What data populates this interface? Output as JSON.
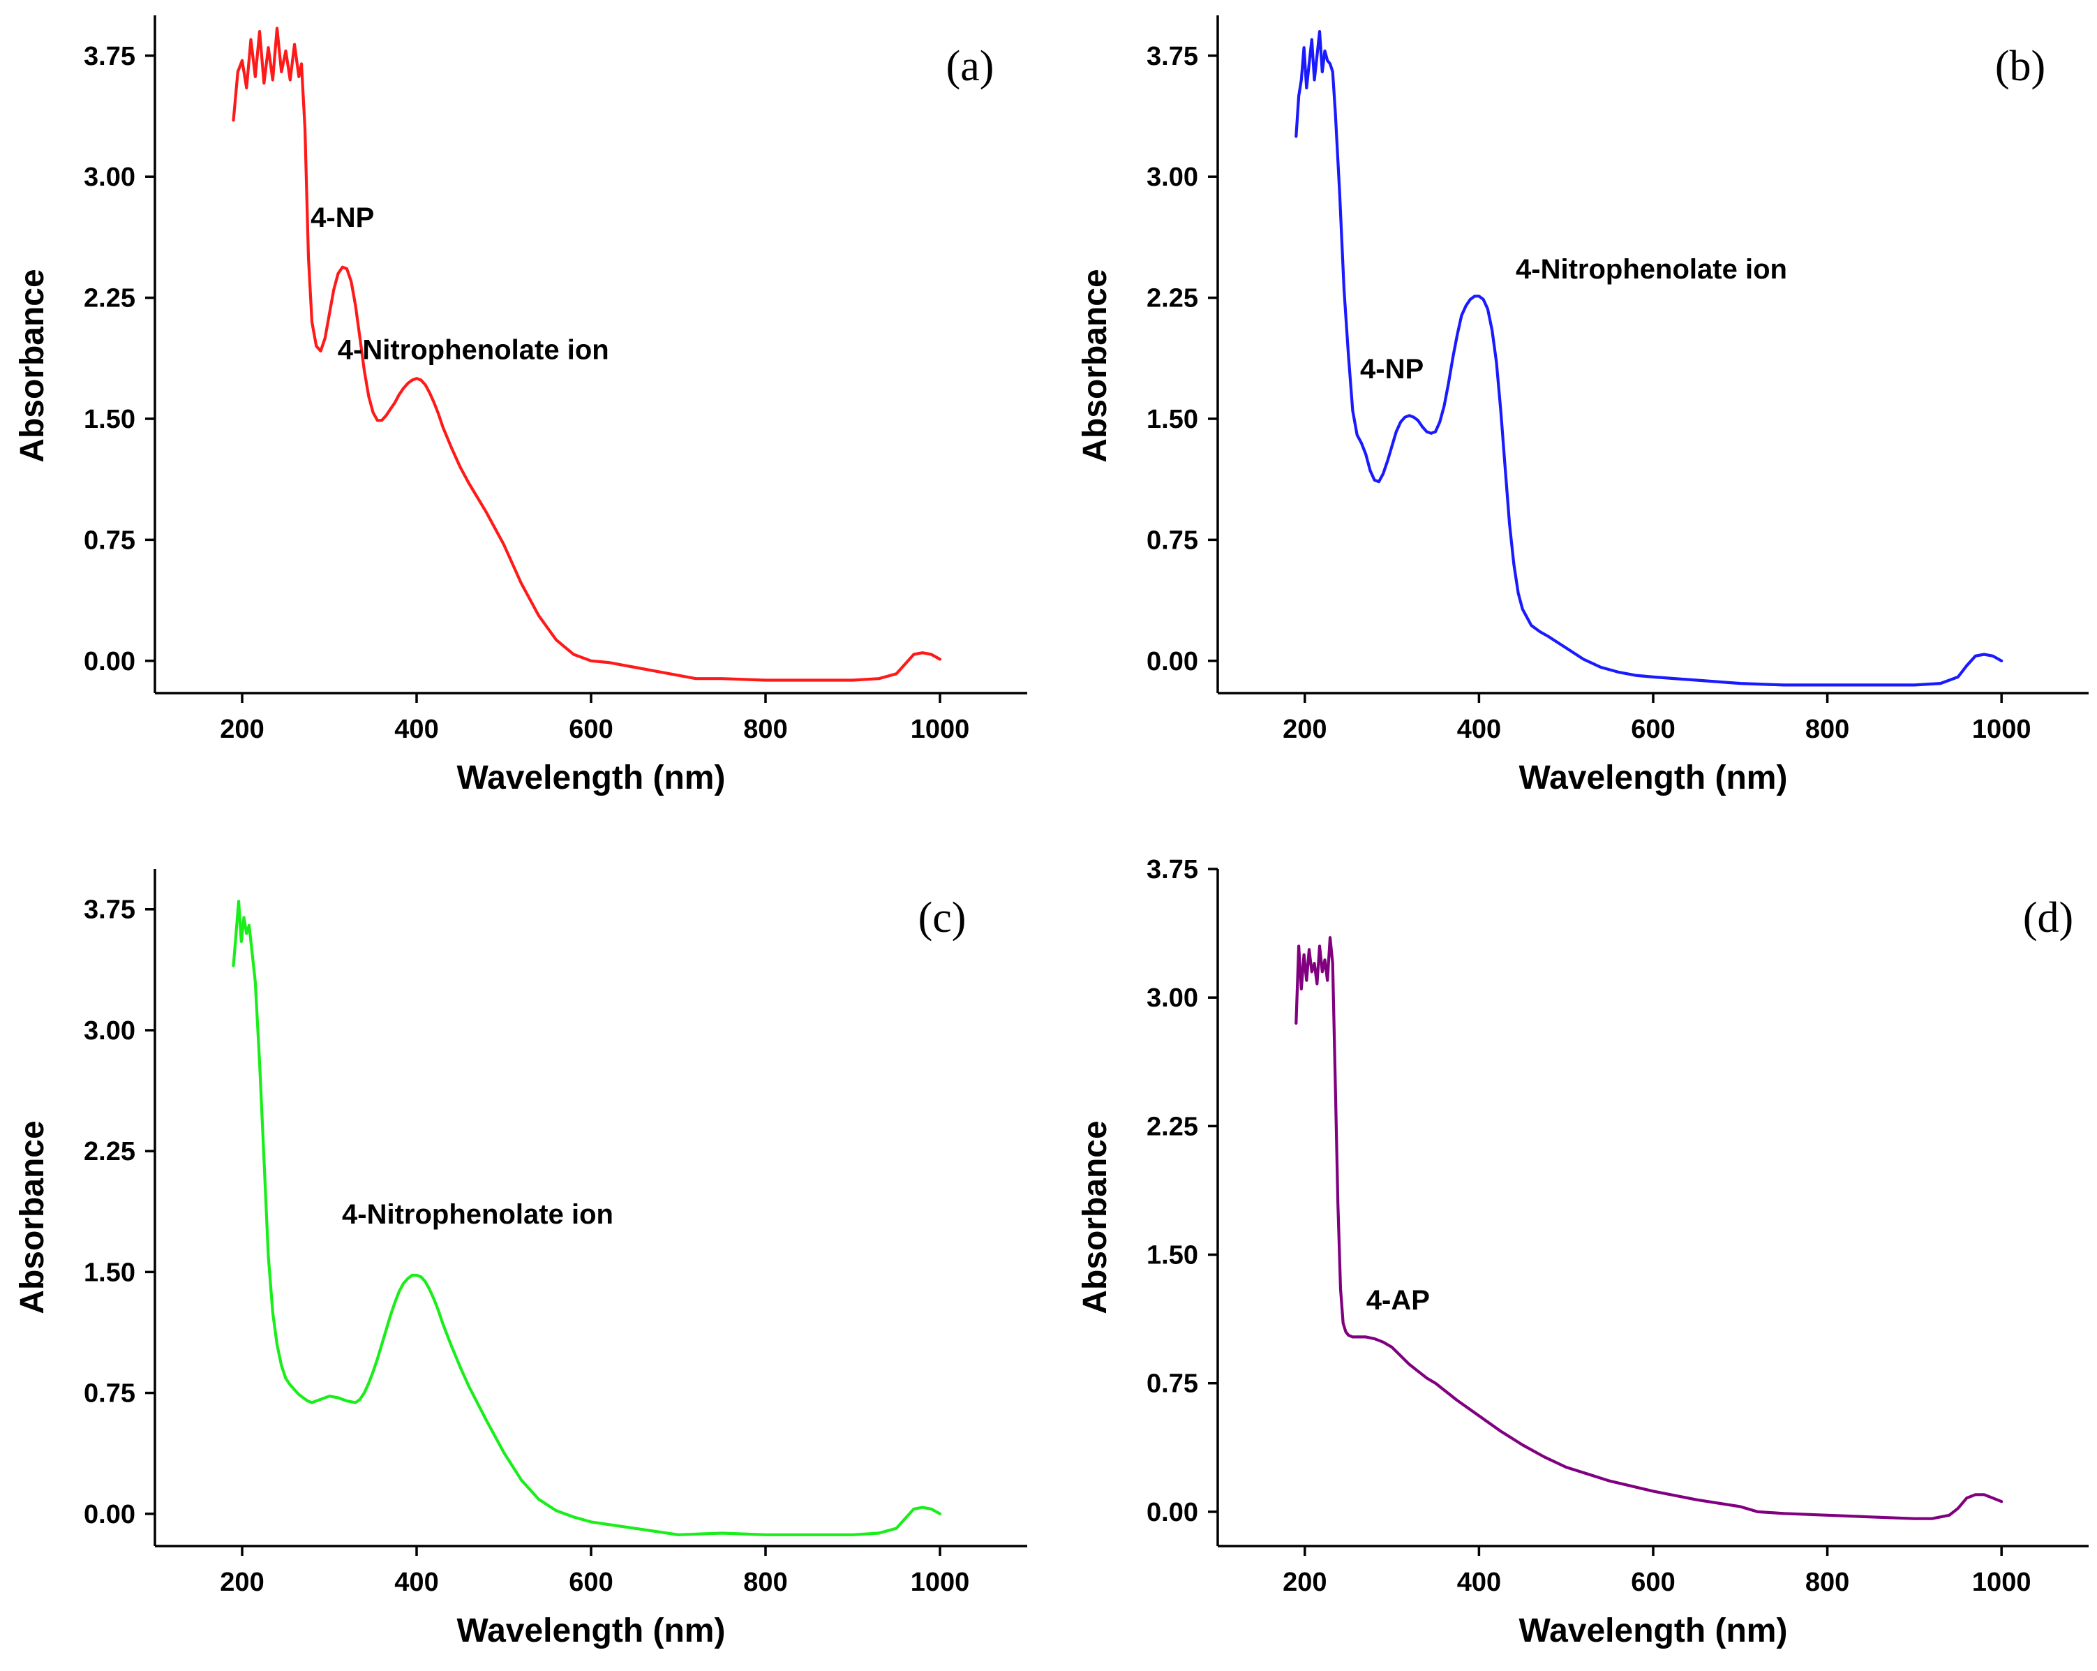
{
  "chart_data": [
    {
      "type": "line",
      "panel_label": "(a)",
      "xlabel": "Wavelength (nm)",
      "ylabel": "Absorbance",
      "xlim": [
        100,
        1100
      ],
      "ylim": [
        -0.2,
        4.0
      ],
      "xticks": [
        200,
        400,
        600,
        800,
        1000
      ],
      "xtick_labels": [
        "200",
        "400",
        "600",
        "800",
        "1000"
      ],
      "yticks": [
        0,
        0.75,
        1.5,
        2.25,
        3.0,
        3.75
      ],
      "ytick_labels": [
        "0.00",
        "0.75",
        "1.50",
        "2.25",
        "3.00",
        "3.75"
      ],
      "grid": false,
      "color": "#ff1a1a",
      "series": [
        {
          "name": "(a)",
          "x": [
            190,
            195,
            200,
            205,
            210,
            215,
            220,
            225,
            230,
            235,
            240,
            245,
            250,
            255,
            260,
            265,
            268,
            272,
            276,
            280,
            285,
            290,
            295,
            300,
            305,
            310,
            315,
            320,
            325,
            330,
            335,
            340,
            345,
            350,
            355,
            360,
            365,
            370,
            375,
            380,
            385,
            390,
            395,
            400,
            405,
            410,
            415,
            420,
            425,
            430,
            440,
            450,
            460,
            480,
            500,
            520,
            540,
            560,
            580,
            600,
            620,
            650,
            680,
            700,
            720,
            750,
            800,
            850,
            900,
            930,
            950,
            960,
            970,
            980,
            990,
            1000
          ],
          "y": [
            3.35,
            3.65,
            3.72,
            3.55,
            3.85,
            3.62,
            3.9,
            3.58,
            3.8,
            3.6,
            3.92,
            3.65,
            3.78,
            3.6,
            3.82,
            3.62,
            3.7,
            3.3,
            2.5,
            2.1,
            1.95,
            1.92,
            2.0,
            2.15,
            2.3,
            2.4,
            2.44,
            2.43,
            2.35,
            2.2,
            2.0,
            1.8,
            1.64,
            1.54,
            1.49,
            1.49,
            1.52,
            1.56,
            1.6,
            1.65,
            1.69,
            1.72,
            1.74,
            1.75,
            1.74,
            1.71,
            1.66,
            1.6,
            1.53,
            1.45,
            1.32,
            1.2,
            1.1,
            0.92,
            0.72,
            0.48,
            0.28,
            0.13,
            0.04,
            0.0,
            -0.01,
            -0.04,
            -0.07,
            -0.09,
            -0.11,
            -0.11,
            -0.12,
            -0.12,
            -0.12,
            -0.11,
            -0.08,
            -0.02,
            0.04,
            0.05,
            0.04,
            0.01
          ]
        }
      ],
      "annotations": [
        {
          "text": "4-NP",
          "x": 315,
          "y": 2.69
        },
        {
          "text": "4-Nitrophenolate ion",
          "x": 465,
          "y": 1.87
        }
      ]
    },
    {
      "type": "line",
      "panel_label": "(b)",
      "xlabel": "Wavelength (nm)",
      "ylabel": "Absorbance",
      "xlim": [
        100,
        1100
      ],
      "ylim": [
        -0.2,
        4.0
      ],
      "xticks": [
        200,
        400,
        600,
        800,
        1000
      ],
      "xtick_labels": [
        "200",
        "400",
        "600",
        "800",
        "1000"
      ],
      "yticks": [
        0,
        0.75,
        1.5,
        2.25,
        3.0,
        3.75
      ],
      "ytick_labels": [
        "0.00",
        "0.75",
        "1.50",
        "2.25",
        "3.00",
        "3.75"
      ],
      "grid": false,
      "color": "#1a1aff",
      "series": [
        {
          "name": "(b)",
          "x": [
            190,
            193,
            196,
            199,
            202,
            205,
            208,
            211,
            214,
            217,
            220,
            223,
            226,
            229,
            232,
            235,
            240,
            245,
            250,
            255,
            260,
            265,
            270,
            275,
            280,
            285,
            290,
            295,
            300,
            305,
            310,
            315,
            320,
            325,
            330,
            335,
            340,
            345,
            350,
            355,
            360,
            365,
            370,
            375,
            380,
            385,
            390,
            395,
            400,
            405,
            410,
            415,
            420,
            425,
            430,
            435,
            440,
            445,
            450,
            460,
            470,
            480,
            500,
            520,
            540,
            560,
            580,
            600,
            650,
            700,
            750,
            800,
            850,
            900,
            930,
            950,
            960,
            970,
            980,
            990,
            1000
          ],
          "y": [
            3.25,
            3.5,
            3.6,
            3.8,
            3.55,
            3.7,
            3.85,
            3.6,
            3.75,
            3.9,
            3.65,
            3.78,
            3.72,
            3.7,
            3.65,
            3.4,
            2.9,
            2.3,
            1.9,
            1.55,
            1.4,
            1.35,
            1.28,
            1.18,
            1.12,
            1.11,
            1.16,
            1.24,
            1.33,
            1.42,
            1.48,
            1.51,
            1.52,
            1.51,
            1.49,
            1.45,
            1.42,
            1.41,
            1.42,
            1.48,
            1.58,
            1.72,
            1.88,
            2.02,
            2.14,
            2.2,
            2.24,
            2.26,
            2.26,
            2.24,
            2.18,
            2.05,
            1.85,
            1.55,
            1.2,
            0.85,
            0.6,
            0.42,
            0.32,
            0.22,
            0.18,
            0.15,
            0.08,
            0.01,
            -0.04,
            -0.07,
            -0.09,
            -0.1,
            -0.12,
            -0.14,
            -0.15,
            -0.15,
            -0.15,
            -0.15,
            -0.14,
            -0.1,
            -0.03,
            0.03,
            0.04,
            0.03,
            0.0
          ]
        }
      ],
      "annotations": [
        {
          "text": "4-NP",
          "x": 300,
          "y": 1.75
        },
        {
          "text": "4-Nitrophenolate ion",
          "x": 598,
          "y": 2.37
        }
      ]
    },
    {
      "type": "line",
      "panel_label": "(c)",
      "xlabel": "Wavelength (nm)",
      "ylabel": "Absorbance",
      "xlim": [
        100,
        1100
      ],
      "ylim": [
        -0.2,
        4.0
      ],
      "xticks": [
        200,
        400,
        600,
        800,
        1000
      ],
      "xtick_labels": [
        "200",
        "400",
        "600",
        "800",
        "1000"
      ],
      "yticks": [
        0,
        0.75,
        1.5,
        2.25,
        3.0,
        3.75
      ],
      "ytick_labels": [
        "0.00",
        "0.75",
        "1.50",
        "2.25",
        "3.00",
        "3.75"
      ],
      "grid": false,
      "color": "#1aee1a",
      "series": [
        {
          "name": "(c)",
          "x": [
            190,
            193,
            196,
            199,
            202,
            205,
            208,
            211,
            215,
            220,
            225,
            230,
            235,
            240,
            245,
            250,
            255,
            260,
            265,
            270,
            275,
            280,
            285,
            290,
            300,
            310,
            320,
            330,
            335,
            340,
            345,
            350,
            355,
            360,
            365,
            370,
            375,
            380,
            385,
            390,
            395,
            400,
            405,
            410,
            415,
            420,
            425,
            430,
            440,
            450,
            460,
            480,
            500,
            520,
            540,
            560,
            580,
            600,
            650,
            700,
            750,
            800,
            850,
            900,
            930,
            950,
            960,
            970,
            980,
            990,
            1000
          ],
          "y": [
            3.4,
            3.6,
            3.8,
            3.55,
            3.7,
            3.6,
            3.65,
            3.5,
            3.3,
            2.8,
            2.2,
            1.6,
            1.25,
            1.05,
            0.92,
            0.84,
            0.8,
            0.77,
            0.74,
            0.72,
            0.7,
            0.69,
            0.7,
            0.71,
            0.73,
            0.72,
            0.7,
            0.69,
            0.71,
            0.75,
            0.81,
            0.88,
            0.96,
            1.05,
            1.14,
            1.23,
            1.31,
            1.38,
            1.43,
            1.46,
            1.48,
            1.48,
            1.47,
            1.44,
            1.39,
            1.33,
            1.26,
            1.18,
            1.04,
            0.91,
            0.79,
            0.58,
            0.38,
            0.21,
            0.09,
            0.02,
            -0.02,
            -0.05,
            -0.09,
            -0.13,
            -0.12,
            -0.13,
            -0.13,
            -0.13,
            -0.12,
            -0.09,
            -0.03,
            0.03,
            0.04,
            0.03,
            0.0
          ]
        }
      ],
      "annotations": [
        {
          "text": "4-Nitrophenolate ion",
          "x": 470,
          "y": 1.8
        }
      ]
    },
    {
      "type": "line",
      "panel_label": "(d)",
      "xlabel": "Wavelength (nm)",
      "ylabel": "Absorbance",
      "xlim": [
        100,
        1100
      ],
      "ylim": [
        -0.2,
        3.75
      ],
      "xticks": [
        200,
        400,
        600,
        800,
        1000
      ],
      "xtick_labels": [
        "200",
        "400",
        "600",
        "800",
        "1000"
      ],
      "yticks": [
        0,
        0.75,
        1.5,
        2.25,
        3.0,
        3.75
      ],
      "ytick_labels": [
        "0.00",
        "0.75",
        "1.50",
        "2.25",
        "3.00",
        "3.75"
      ],
      "grid": false,
      "color": "#800080",
      "series": [
        {
          "name": "(d)",
          "x": [
            190,
            193,
            196,
            199,
            202,
            205,
            208,
            211,
            214,
            217,
            220,
            223,
            226,
            229,
            232,
            235,
            238,
            241,
            244,
            247,
            250,
            255,
            260,
            270,
            280,
            290,
            300,
            310,
            320,
            330,
            340,
            350,
            375,
            400,
            425,
            450,
            475,
            500,
            550,
            600,
            650,
            700,
            720,
            750,
            800,
            850,
            900,
            920,
            940,
            950,
            960,
            970,
            980,
            990,
            1000
          ],
          "y": [
            2.85,
            3.3,
            3.05,
            3.25,
            3.1,
            3.28,
            3.15,
            3.2,
            3.08,
            3.3,
            3.15,
            3.22,
            3.1,
            3.35,
            3.2,
            2.5,
            1.8,
            1.3,
            1.1,
            1.05,
            1.03,
            1.02,
            1.02,
            1.02,
            1.01,
            0.99,
            0.96,
            0.91,
            0.86,
            0.82,
            0.78,
            0.75,
            0.65,
            0.56,
            0.47,
            0.39,
            0.32,
            0.26,
            0.18,
            0.12,
            0.07,
            0.03,
            0.0,
            -0.01,
            -0.02,
            -0.03,
            -0.04,
            -0.04,
            -0.02,
            0.02,
            0.08,
            0.1,
            0.1,
            0.08,
            0.06
          ]
        }
      ],
      "annotations": [
        {
          "text": "4-AP",
          "x": 307,
          "y": 1.18
        }
      ]
    }
  ]
}
